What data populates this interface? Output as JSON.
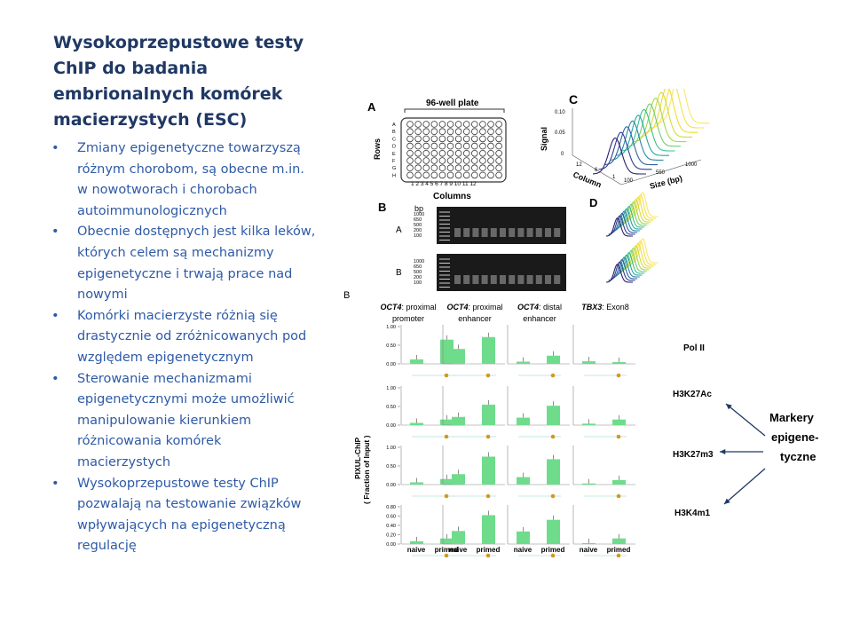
{
  "slide": {
    "title": "Wysokoprzepustowe testy ChIP do badania embrionalnych komórek macierzystych (ESC)",
    "bullets": [
      "Zmiany epigenetyczne towarzyszą różnym chorobom, są obecne m.in. w nowotworach i chorobach autoimmunologicznych",
      "Obecnie dostępnych jest kilka leków, których celem są mechanizmy epigenetyczne i trwają prace nad nowymi",
      "Komórki macierzyste różnią się drastycznie od zróżnicowanych pod względem epigenetycznym",
      "Sterowanie  mechanizmami epigenetycznymi może umożliwić manipulowanie kierunkiem różnicowania komórek macierzystych",
      "Wysokoprzepustowe testy ChIP pozwalają na testowanie związków wpływających na epigenetyczną regulację"
    ],
    "bullet_glyph": "•"
  },
  "figure": {
    "panel_a": {
      "label": "A",
      "plate_label": "96-well plate",
      "rows_label": "Rows",
      "columns_label": "Columns",
      "row_letters": [
        "A",
        "B",
        "C",
        "D",
        "E",
        "F",
        "G",
        "H"
      ],
      "column_numbers": "1 2 3 4 5 6 7 8 9 10 11 12"
    },
    "panel_b": {
      "label": "B",
      "bp_label": "bp",
      "gel_rows": [
        "A",
        "B"
      ],
      "ladder_ticks": [
        "1000",
        "650",
        "500",
        "200",
        "100"
      ]
    },
    "panel_c": {
      "label": "C",
      "y_label": "Signal",
      "x_label": "Size (bp)",
      "z_label": "Column",
      "y_ticks": [
        "0.10",
        "0.05",
        "0"
      ],
      "x_ticks": [
        "100",
        "550",
        "1000"
      ],
      "z_ticks": [
        "12",
        "6",
        "1"
      ]
    },
    "panel_d": {
      "label": "D"
    },
    "bottom_label": "B",
    "y_axis_label_1": "PIXUL-ChIP",
    "y_axis_label_2": "( Fraction of  Input )",
    "columns": [
      {
        "gene": "OCT4",
        "region_1": ": proximal",
        "region_2": "promoter"
      },
      {
        "gene": "OCT4",
        "region_1": ": proximal",
        "region_2": "enhancer"
      },
      {
        "gene": "OCT4",
        "region_1": ": distal",
        "region_2": "enhancer"
      },
      {
        "gene": "TBX3",
        "region_1": ": Exon8",
        "region_2": ""
      }
    ],
    "y_ticks_rows_1_3": [
      "1.00",
      "0.50",
      "0.00"
    ],
    "y_ticks_row_4": [
      "0.80",
      "0.60",
      "0.40",
      "0.20",
      "0.00"
    ],
    "x_categories": [
      "naive",
      "primed"
    ],
    "marks": [
      "Pol II",
      "H3K27Ac",
      "H3K27m3",
      "H3K4m1"
    ],
    "markers_annotation": [
      "Markery",
      "epigene-",
      "tyczne"
    ],
    "bar_color": "#6fdc8c",
    "arrow_color": "#1f3864"
  },
  "chart_data": {
    "type": "bar",
    "ylabel": "PIXUL-ChIP ( Fraction of  Input )",
    "categories": [
      "naive",
      "primed"
    ],
    "panels": [
      {
        "mark": "Pol II",
        "ylim": [
          0,
          1
        ],
        "series": [
          {
            "name": "OCT4: proximal promoter",
            "values": [
              0.12,
              0.65
            ]
          },
          {
            "name": "OCT4: proximal enhancer",
            "values": [
              0.4,
              0.72
            ]
          },
          {
            "name": "OCT4: distal enhancer",
            "values": [
              0.06,
              0.22
            ]
          },
          {
            "name": "TBX3: Exon8",
            "values": [
              0.07,
              0.05
            ]
          }
        ]
      },
      {
        "mark": "H3K27Ac",
        "ylim": [
          0,
          1
        ],
        "series": [
          {
            "name": "OCT4: proximal promoter",
            "values": [
              0.06,
              0.15
            ]
          },
          {
            "name": "OCT4: proximal enhancer",
            "values": [
              0.22,
              0.55
            ]
          },
          {
            "name": "OCT4: distal enhancer",
            "values": [
              0.2,
              0.52
            ]
          },
          {
            "name": "TBX3: Exon8",
            "values": [
              0.04,
              0.15
            ]
          }
        ]
      },
      {
        "mark": "H3K27m3",
        "ylim": [
          0,
          1
        ],
        "series": [
          {
            "name": "OCT4: proximal promoter",
            "values": [
              0.06,
              0.15
            ]
          },
          {
            "name": "OCT4: proximal enhancer",
            "values": [
              0.28,
              0.75
            ]
          },
          {
            "name": "OCT4: distal enhancer",
            "values": [
              0.2,
              0.68
            ]
          },
          {
            "name": "TBX3: Exon8",
            "values": [
              0.03,
              0.12
            ]
          }
        ]
      },
      {
        "mark": "H3K4m1",
        "ylim": [
          0,
          0.8
        ],
        "series": [
          {
            "name": "OCT4: proximal promoter",
            "values": [
              0.06,
              0.12
            ]
          },
          {
            "name": "OCT4: proximal enhancer",
            "values": [
              0.28,
              0.62
            ]
          },
          {
            "name": "OCT4: distal enhancer",
            "values": [
              0.27,
              0.52
            ]
          },
          {
            "name": "TBX3: Exon8",
            "values": [
              0.02,
              0.12
            ]
          }
        ]
      }
    ],
    "grid": false
  }
}
